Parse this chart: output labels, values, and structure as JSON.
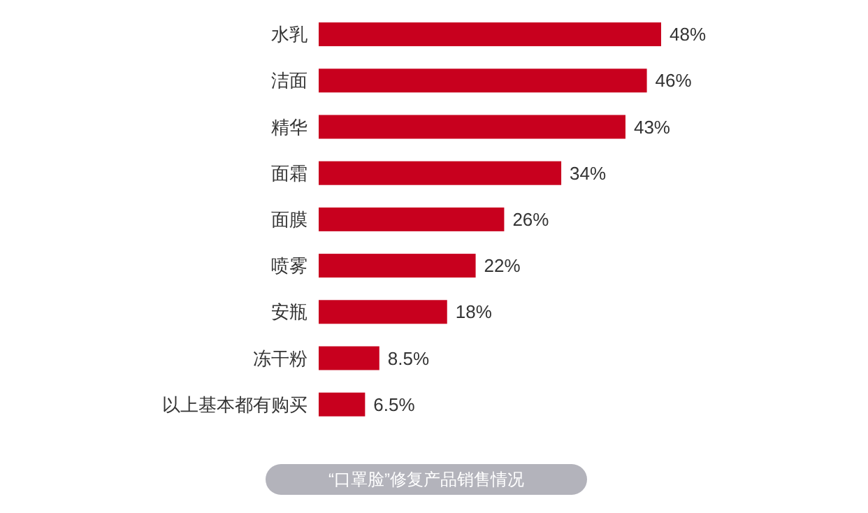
{
  "chart_data": {
    "type": "bar",
    "orientation": "horizontal",
    "title": "“口罩脸”修复产品销售情况",
    "categories": [
      "水乳",
      "洁面",
      "精华",
      "面霜",
      "面膜",
      "喷雾",
      "安瓶",
      "冻干粉",
      "以上基本都有购买"
    ],
    "values": [
      48,
      46,
      43,
      34,
      26,
      22,
      18,
      8.5,
      6.5
    ],
    "value_labels": [
      "48%",
      "46%",
      "43%",
      "34%",
      "26%",
      "22%",
      "18%",
      "8.5%",
      "6.5%"
    ],
    "color": "#c8001e"
  }
}
